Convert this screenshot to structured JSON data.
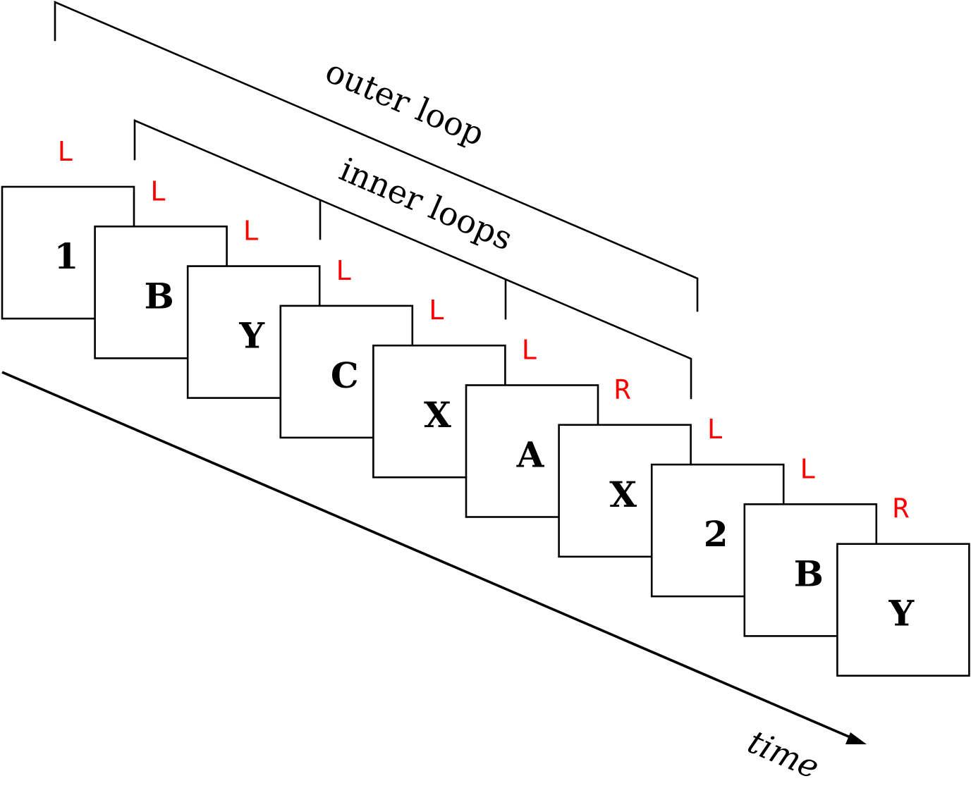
{
  "diagram": {
    "cards": [
      {
        "label": "1",
        "response": "L"
      },
      {
        "label": "B",
        "response": "L"
      },
      {
        "label": "Y",
        "response": "L"
      },
      {
        "label": "C",
        "response": "L"
      },
      {
        "label": "X",
        "response": "L"
      },
      {
        "label": "A",
        "response": "L"
      },
      {
        "label": "X",
        "response": "R"
      },
      {
        "label": "2",
        "response": "L"
      },
      {
        "label": "B",
        "response": "L"
      },
      {
        "label": "Y",
        "response": "R"
      }
    ],
    "outer_loop_label": "outer loop",
    "inner_loops_label": "inner loops",
    "time_label": "time",
    "colors": {
      "response": "#ff0000",
      "stroke": "#000000",
      "card_fill": "#ffffff"
    }
  }
}
